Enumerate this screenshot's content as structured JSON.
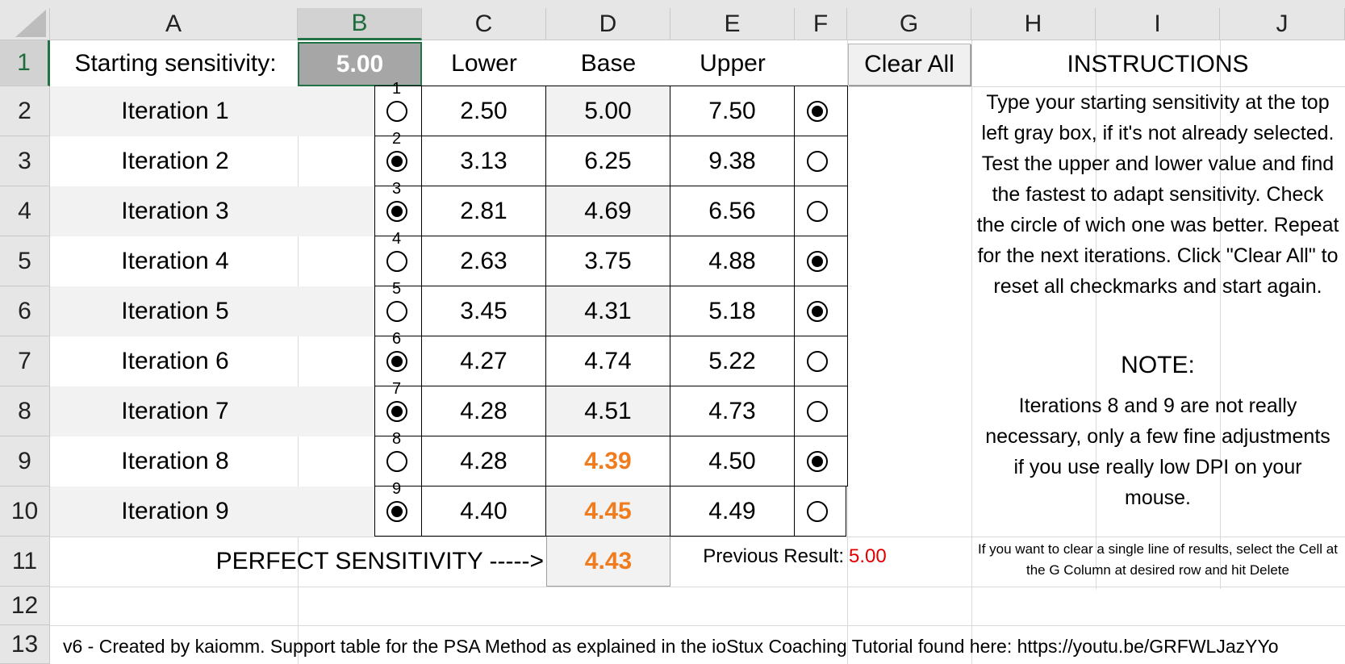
{
  "columns": [
    "A",
    "B",
    "C",
    "D",
    "E",
    "F",
    "G",
    "H",
    "I",
    "J"
  ],
  "rows": [
    "1",
    "2",
    "3",
    "4",
    "5",
    "6",
    "7",
    "8",
    "9",
    "10",
    "11",
    "12",
    "13"
  ],
  "header": {
    "starting_label": "Starting sensitivity:",
    "starting_value": "5.00",
    "lower": "Lower",
    "base": "Base",
    "upper": "Upper",
    "clear_all": "Clear All"
  },
  "iterations": [
    {
      "label": "Iteration 1",
      "num": "1",
      "lower": "2.50",
      "base": "5.00",
      "upper": "7.50",
      "left_on": false,
      "right_on": true
    },
    {
      "label": "Iteration 2",
      "num": "2",
      "lower": "3.13",
      "base": "6.25",
      "upper": "9.38",
      "left_on": true,
      "right_on": false
    },
    {
      "label": "Iteration 3",
      "num": "3",
      "lower": "2.81",
      "base": "4.69",
      "upper": "6.56",
      "left_on": true,
      "right_on": false
    },
    {
      "label": "Iteration 4",
      "num": "4",
      "lower": "2.63",
      "base": "3.75",
      "upper": "4.88",
      "left_on": false,
      "right_on": true
    },
    {
      "label": "Iteration 5",
      "num": "5",
      "lower": "3.45",
      "base": "4.31",
      "upper": "5.18",
      "left_on": false,
      "right_on": true
    },
    {
      "label": "Iteration 6",
      "num": "6",
      "lower": "4.27",
      "base": "4.74",
      "upper": "5.22",
      "left_on": true,
      "right_on": false
    },
    {
      "label": "Iteration 7",
      "num": "7",
      "lower": "4.28",
      "base": "4.51",
      "upper": "4.73",
      "left_on": true,
      "right_on": false
    },
    {
      "label": "Iteration 8",
      "num": "8",
      "lower": "4.28",
      "base": "4.39",
      "upper": "4.50",
      "left_on": false,
      "right_on": true
    },
    {
      "label": "Iteration 9",
      "num": "9",
      "lower": "4.40",
      "base": "4.45",
      "upper": "4.49",
      "left_on": true,
      "right_on": false
    }
  ],
  "result": {
    "perfect_label": "PERFECT SENSITIVITY ----->",
    "perfect_value": "4.43",
    "previous_label": "Previous Result:",
    "previous_value": "5.00"
  },
  "instructions": {
    "title": "INSTRUCTIONS",
    "body": "Type your starting sensitivity at the top left gray box, if it's not already selected. Test the upper and lower value and find the fastest to adapt sensitivity. Check the circle of wich one was better. Repeat for the next iterations. Click \"Clear All\" to reset all checkmarks and start again.",
    "note_title": "NOTE:",
    "note_body": "Iterations 8 and 9 are not really necessary, only a few fine adjustments if you use really low DPI on your mouse.",
    "tip": "If you want to clear a single line of results, select the Cell at the G Column at desired row and hit Delete"
  },
  "footer": "v6 - Created by kaiomm. Support table for the PSA Method as explained in the ioStux Coaching Tutorial found here: https://youtu.be/GRFWLJazYYo",
  "colors": {
    "orange": "#f07c1e",
    "red": "#e00000",
    "header_gray": "#e6e6e6",
    "selected_green": "#217346",
    "input_gray": "#a6a6a6"
  }
}
